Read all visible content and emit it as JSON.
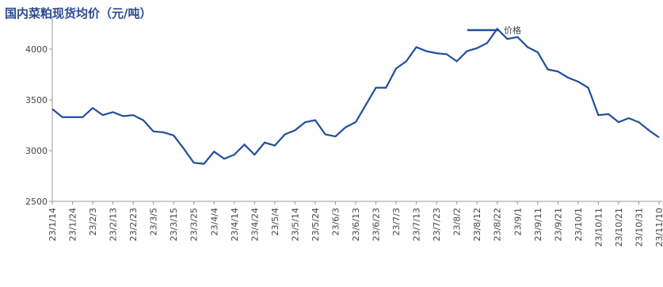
{
  "chart_data": {
    "type": "line",
    "title": "国内菜粕现货均价（元/吨）",
    "categories": [
      "23/1/14",
      null,
      "23/1/24",
      null,
      "23/2/3",
      null,
      "23/2/13",
      null,
      "23/2/23",
      null,
      "23/3/5",
      null,
      "23/3/15",
      null,
      "23/3/25",
      null,
      "23/4/4",
      null,
      "23/4/14",
      null,
      "23/4/24",
      null,
      "23/5/4",
      null,
      "23/5/14",
      null,
      "23/5/24",
      null,
      "23/6/3",
      null,
      "23/6/13",
      null,
      "23/6/23",
      null,
      "23/7/3",
      null,
      "23/7/13",
      null,
      "23/7/23",
      null,
      "23/8/2",
      null,
      "23/8/12",
      null,
      "23/8/22",
      null,
      "23/9/1",
      null,
      "23/9/11",
      null,
      "23/9/21",
      null,
      "23/10/1",
      null,
      "23/10/11",
      null,
      "23/10/21",
      null,
      "23/10/31",
      null,
      "23/11/10"
    ],
    "series": [
      {
        "name": "价格",
        "color": "#1f4e9c",
        "values": [
          3410,
          3330,
          3330,
          3330,
          3420,
          3350,
          3380,
          3340,
          3350,
          3300,
          3190,
          3180,
          3150,
          3020,
          2880,
          2870,
          2990,
          2920,
          2960,
          3060,
          2960,
          3080,
          3050,
          3160,
          3200,
          3280,
          3300,
          3160,
          3140,
          3230,
          3280,
          3450,
          3620,
          3620,
          3810,
          3880,
          4020,
          3980,
          3960,
          3950,
          3880,
          3980,
          4010,
          4060,
          4200,
          4100,
          4120,
          4020,
          3970,
          3800,
          3780,
          3720,
          3680,
          3620,
          3350,
          3360,
          3280,
          3320,
          3280,
          3200,
          3130
        ]
      }
    ],
    "ylim": [
      2500,
      4250
    ],
    "yticks": [
      2500,
      3000,
      3500,
      4000
    ],
    "grid": false,
    "legend": "top-right"
  }
}
